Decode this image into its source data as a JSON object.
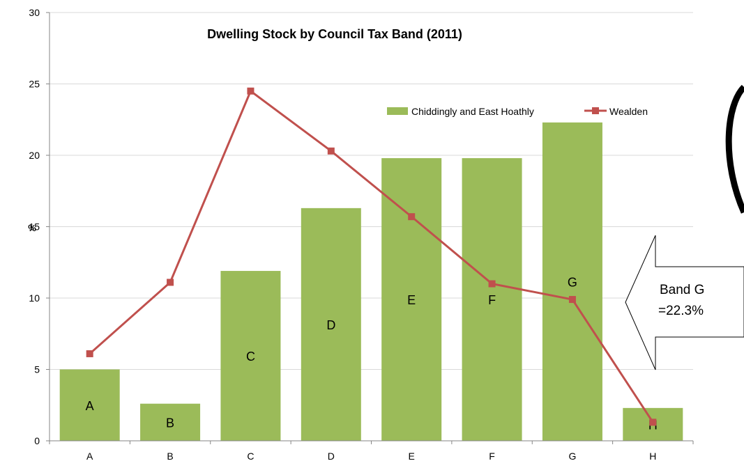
{
  "chart_data": {
    "type": "bar",
    "title": "Dwelling  Stock by Council Tax Band (2011)",
    "ylabel": "%",
    "xlabel": "",
    "ylim": [
      0,
      30
    ],
    "yticks": [
      0,
      5,
      10,
      15,
      20,
      25,
      30
    ],
    "grid": true,
    "legend_position": "top-right",
    "categories": [
      "A",
      "B",
      "C",
      "D",
      "E",
      "F",
      "G",
      "H"
    ],
    "series": [
      {
        "name": "Chiddingly and East Hoathly",
        "type": "bar",
        "color": "#9BBB59",
        "values": [
          5.0,
          2.6,
          11.9,
          16.3,
          19.8,
          19.8,
          22.3,
          2.3
        ],
        "bar_labels": [
          "A",
          "B",
          "C",
          "D",
          "E",
          "F",
          "G",
          "H"
        ]
      },
      {
        "name": "Wealden",
        "type": "line",
        "color": "#C0504D",
        "values": [
          6.1,
          11.1,
          24.5,
          20.3,
          15.7,
          11.0,
          9.9,
          1.3
        ]
      }
    ],
    "annotations": [
      {
        "text_line1": "Band G",
        "text_line2": "=22.3%",
        "shape": "left-arrow"
      }
    ]
  }
}
